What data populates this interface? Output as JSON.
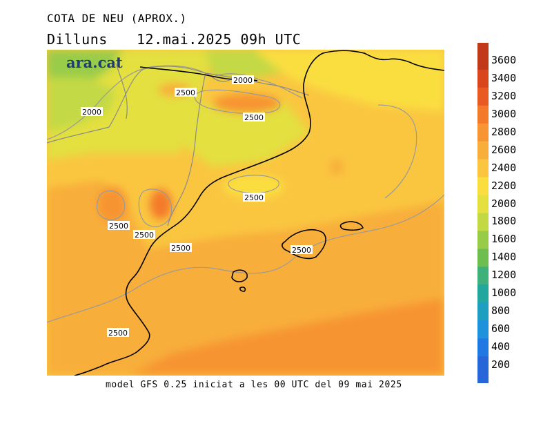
{
  "header": {
    "title": "COTA DE NEU (APROX.)",
    "day": "Dilluns",
    "datetime": "12.mai.2025 09h UTC"
  },
  "footer": {
    "model_note": "model GFS 0.25 iniciat a les 00 UTC del 09 mai 2025"
  },
  "logo": {
    "text": "ara.cat",
    "color": "#1f3f6e"
  },
  "legend": {
    "levels": [
      {
        "value": "3600",
        "color": "#c0391b"
      },
      {
        "value": "3400",
        "color": "#d9461e"
      },
      {
        "value": "3200",
        "color": "#e85a22"
      },
      {
        "value": "3000",
        "color": "#f47a2b"
      },
      {
        "value": "2800",
        "color": "#f79433"
      },
      {
        "value": "2600",
        "color": "#f8ae3a"
      },
      {
        "value": "2400",
        "color": "#fac640"
      },
      {
        "value": "2200",
        "color": "#fade3f"
      },
      {
        "value": "2000",
        "color": "#e3e040"
      },
      {
        "value": "1800",
        "color": "#c3d944"
      },
      {
        "value": "1600",
        "color": "#98cc48"
      },
      {
        "value": "1400",
        "color": "#6ebe4f"
      },
      {
        "value": "1200",
        "color": "#3fb07a"
      },
      {
        "value": "1000",
        "color": "#22a69d"
      },
      {
        "value": "800",
        "color": "#1f9fc0"
      },
      {
        "value": "600",
        "color": "#1f92dc"
      },
      {
        "value": "400",
        "color": "#2079e3"
      },
      {
        "value": "200",
        "color": "#2766d8"
      }
    ]
  },
  "contour_labels": [
    {
      "text": "2000"
    },
    {
      "text": "2500"
    },
    {
      "text": "2000"
    },
    {
      "text": "2500"
    },
    {
      "text": "2500"
    },
    {
      "text": "2500"
    },
    {
      "text": "2500"
    },
    {
      "text": "2500"
    },
    {
      "text": "2500"
    },
    {
      "text": "2500"
    }
  ],
  "colors": {
    "coast": "#000000",
    "border": "#8a8a8a",
    "contour": "#9a9a9a"
  }
}
